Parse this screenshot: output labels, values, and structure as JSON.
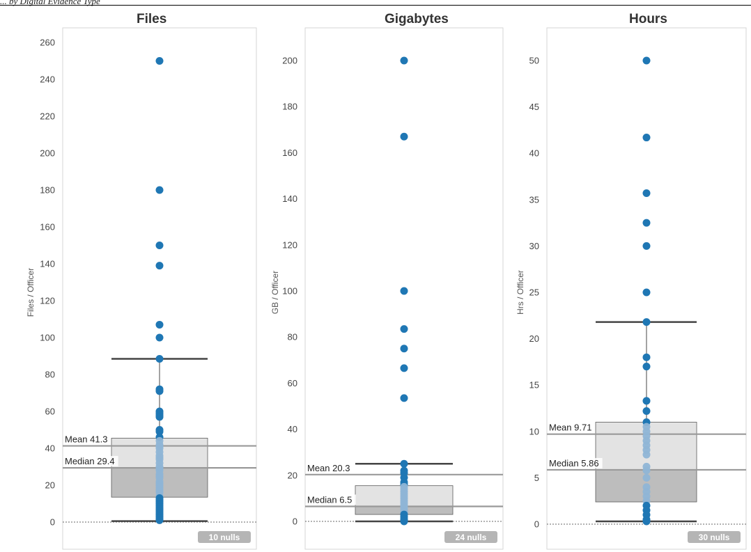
{
  "header": {
    "running_title": "... by Digital Evidence Type"
  },
  "chart_data": [
    {
      "type": "boxplot",
      "title": "Files",
      "ylabel": "Files / Officer",
      "ylim": [
        -4,
        266
      ],
      "yticks": [
        0,
        20,
        40,
        60,
        80,
        100,
        120,
        140,
        160,
        180,
        200,
        220,
        240,
        260
      ],
      "box": {
        "lower_whisker": 0.5,
        "q1": 13.5,
        "median": 29.4,
        "q3": 45.5,
        "upper_whisker": 88.5
      },
      "reference_lines": [
        {
          "label": "Mean 41.3",
          "value": 41.3
        },
        {
          "label": "Median 29.4",
          "value": 29.4
        }
      ],
      "points": [
        250,
        180,
        150,
        139,
        107,
        100,
        88.5,
        72,
        71,
        60,
        59,
        58,
        57,
        50,
        49,
        46,
        44,
        42,
        41,
        40,
        38,
        36,
        35,
        34,
        32,
        30,
        29,
        28,
        26,
        25,
        24,
        22,
        21,
        20,
        19,
        18,
        17,
        16,
        14,
        13,
        12,
        11,
        10,
        9,
        8,
        7,
        6,
        5,
        4,
        3,
        2,
        1
      ],
      "nulls_label": "10 nulls",
      "color": "#1f77b4"
    },
    {
      "type": "boxplot",
      "title": "Gigabytes",
      "ylabel": "GB / Officer",
      "ylim": [
        -4,
        205
      ],
      "yticks": [
        0,
        20,
        40,
        60,
        80,
        100,
        120,
        140,
        160,
        180,
        200
      ],
      "box": {
        "lower_whisker": 0,
        "q1": 3,
        "median": 6.5,
        "q3": 15.5,
        "upper_whisker": 25
      },
      "reference_lines": [
        {
          "label": "Mean 20.3",
          "value": 20.3
        },
        {
          "label": "Median 6.5",
          "value": 6.5
        }
      ],
      "points": [
        200,
        167,
        100,
        83.5,
        75,
        66.5,
        53.5,
        25,
        22,
        21,
        19,
        17,
        16,
        15,
        14,
        13,
        12,
        11,
        10,
        9,
        8,
        7,
        6,
        5,
        4,
        3,
        2,
        1,
        0.5,
        0
      ],
      "nulls_label": "24 nulls",
      "color": "#1f77b4"
    },
    {
      "type": "boxplot",
      "title": "Hours",
      "ylabel": "Hrs / Officer",
      "ylim": [
        -0.8,
        51
      ],
      "yticks": [
        0,
        5,
        10,
        15,
        20,
        25,
        30,
        35,
        40,
        45,
        50
      ],
      "box": {
        "lower_whisker": 0.3,
        "q1": 2.4,
        "median": 5.86,
        "q3": 11,
        "upper_whisker": 21.8
      },
      "reference_lines": [
        {
          "label": "Mean 9.71",
          "value": 9.71
        },
        {
          "label": "Median 5.86",
          "value": 5.86
        }
      ],
      "points": [
        50,
        41.7,
        35.7,
        32.5,
        30,
        25,
        21.8,
        18,
        17,
        13.3,
        12.2,
        11,
        10.5,
        10,
        9.5,
        9,
        8.5,
        8,
        7.5,
        6.2,
        5.8,
        5,
        4,
        3.5,
        3,
        2.5,
        2,
        1.5,
        1,
        0.5,
        0.3
      ],
      "nulls_label": "30 nulls",
      "color": "#1f77b4"
    }
  ]
}
